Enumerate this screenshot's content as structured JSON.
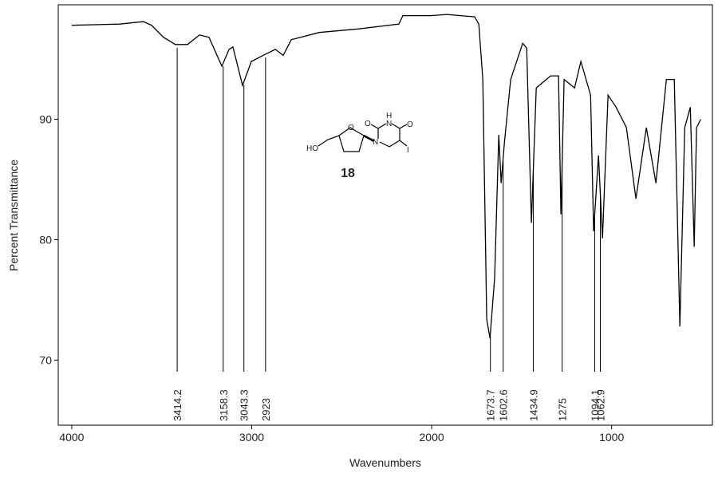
{
  "chart_data": {
    "type": "line",
    "x_label": "Wavenumbers",
    "y_label": "Percent Transmittance",
    "x": [
      4000,
      3734,
      3601,
      3557,
      3490,
      3424,
      3357,
      3290,
      3237,
      3166,
      3126,
      3104,
      3051,
      3002,
      2936,
      2869,
      2825,
      2780,
      2625,
      2404,
      2182,
      2160,
      2004,
      1916,
      1761,
      1738,
      1716,
      1694,
      1676,
      1650,
      1627,
      1614,
      1596,
      1561,
      1494,
      1472,
      1446,
      1419,
      1339,
      1295,
      1282,
      1264,
      1206,
      1171,
      1117,
      1100,
      1073,
      1051,
      1020,
      975,
      918,
      865,
      807,
      754,
      696,
      652,
      621,
      594,
      563,
      541,
      528,
      505
    ],
    "y": [
      97.8,
      97.9,
      98.1,
      97.8,
      96.8,
      96.2,
      96.2,
      97.0,
      96.8,
      94.4,
      95.8,
      96.0,
      92.8,
      94.8,
      95.3,
      95.8,
      95.3,
      96.6,
      97.2,
      97.5,
      97.9,
      98.6,
      98.6,
      98.7,
      98.5,
      97.9,
      93.3,
      73.4,
      71.8,
      76.8,
      88.7,
      84.7,
      88.0,
      93.3,
      96.3,
      95.9,
      81.4,
      92.6,
      93.6,
      93.6,
      82.1,
      93.3,
      92.6,
      94.8,
      92.0,
      80.7,
      87.0,
      80.1,
      92.0,
      91.0,
      89.3,
      83.4,
      89.3,
      84.7,
      93.3,
      93.3,
      72.8,
      89.3,
      91.0,
      79.4,
      89.3,
      90.0
    ],
    "color": "#000000",
    "xlim": [
      4075,
      440
    ],
    "ylim": [
      64.6,
      99.5
    ],
    "xticks": [
      4000,
      3000,
      2000,
      1000
    ],
    "yticks": [
      70,
      80,
      90
    ],
    "peaks": [
      3414.2,
      3158.3,
      3043.3,
      2923.0,
      1673.7,
      1602.6,
      1434.9,
      1275.0,
      1094.1,
      1062.9
    ],
    "structure": {
      "label": "18",
      "atoms": [
        "HO",
        "O",
        "O",
        "N",
        "H",
        "O",
        "N",
        "I"
      ]
    }
  }
}
